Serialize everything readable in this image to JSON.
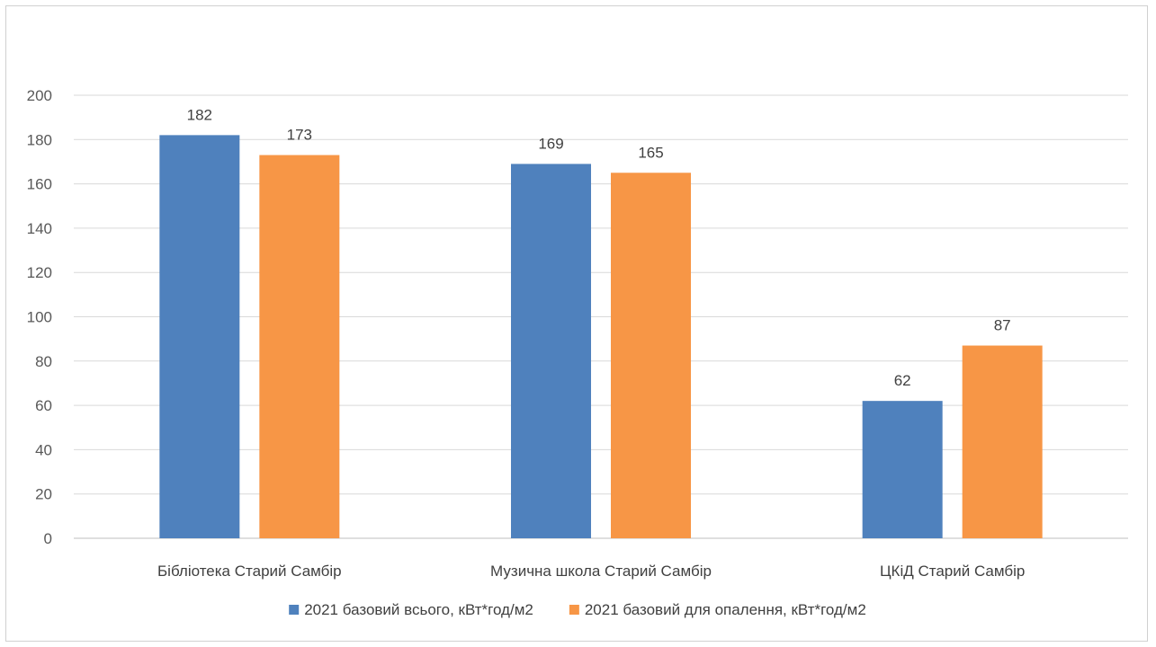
{
  "chart_data": {
    "type": "bar",
    "title": "",
    "xlabel": "",
    "ylabel": "",
    "ylim": [
      0,
      200
    ],
    "yticks": [
      0,
      20,
      40,
      60,
      80,
      100,
      120,
      140,
      160,
      180,
      200
    ],
    "grid": true,
    "legend_position": "bottom",
    "categories": [
      "Бібліотека Старий Самбір",
      "Музична школа Старий Самбір",
      "ЦКіД Старий Самбір"
    ],
    "series": [
      {
        "name": "2021 базовий всього, кВт*год/м2",
        "values": [
          182,
          169,
          62
        ],
        "color": "#4f81bd"
      },
      {
        "name": "2021 базовий для опалення, кВт*год/м2",
        "values": [
          173,
          165,
          87
        ],
        "color": "#f79646"
      }
    ]
  }
}
